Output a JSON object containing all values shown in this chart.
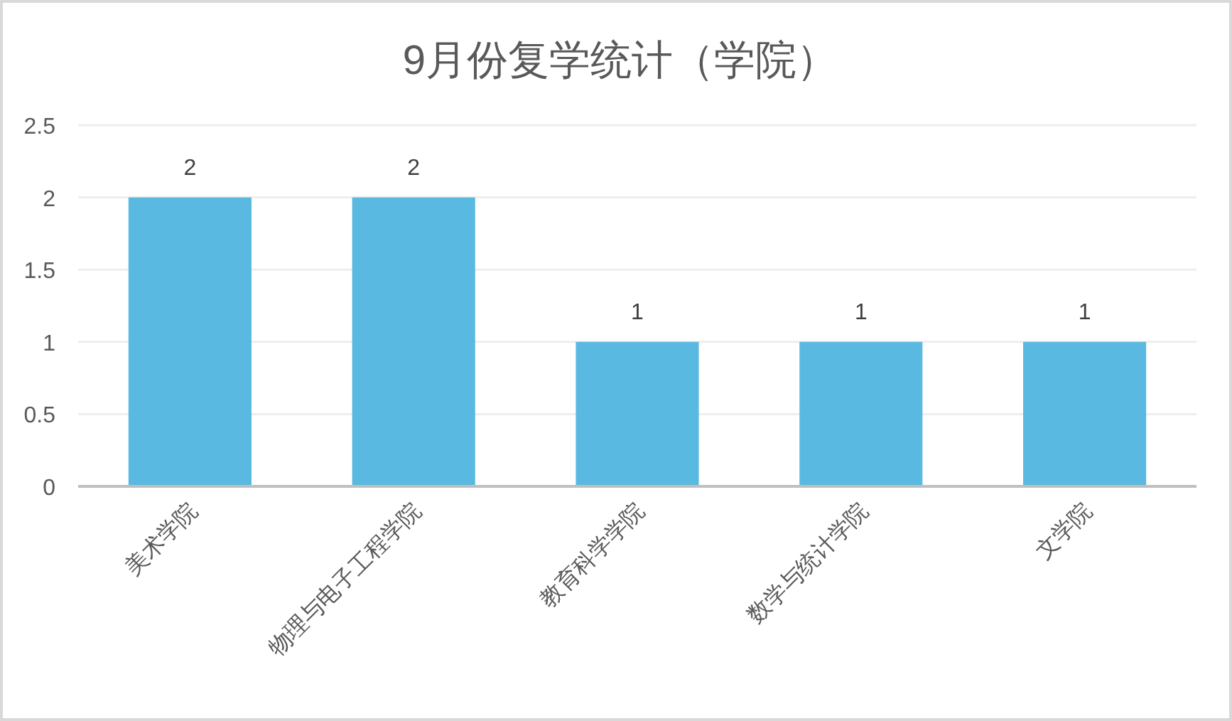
{
  "chart_data": {
    "type": "bar",
    "title": "9月份复学统计（学院）",
    "categories": [
      "美术学院",
      "物理与电子工程学院",
      "教育科学学院",
      "数学与统计学院",
      "文学院"
    ],
    "values": [
      2,
      2,
      1,
      1,
      1
    ],
    "color": "#5ab9e0",
    "ylim": [
      0,
      2.5
    ],
    "yticks": [
      0,
      0.5,
      1,
      1.5,
      2,
      2.5
    ],
    "grid": "y",
    "data_labels": true
  }
}
